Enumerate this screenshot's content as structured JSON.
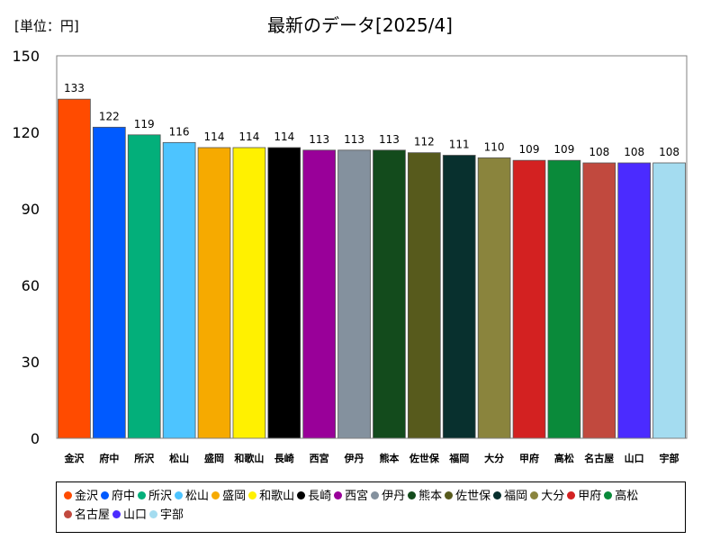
{
  "unit_label": "[単位：円]",
  "chart_data": {
    "type": "bar",
    "title": "最新のデータ[2025/4]",
    "categories": [
      "金沢",
      "府中",
      "所沢",
      "松山",
      "盛岡",
      "和歌山",
      "長崎",
      "西宮",
      "伊丹",
      "熊本",
      "佐世保",
      "福岡",
      "大分",
      "甲府",
      "高松",
      "名古屋",
      "山口",
      "宇部"
    ],
    "values": [
      133,
      122,
      119,
      116,
      114,
      114,
      114,
      113,
      113,
      113,
      112,
      111,
      110,
      109,
      109,
      108,
      108,
      108
    ],
    "colors": [
      "#FF4B00",
      "#005AFF",
      "#03AF7A",
      "#4DC4FF",
      "#F6AA00",
      "#FFF100",
      "#000000",
      "#990099",
      "#84919E",
      "#134B1C",
      "#575A1C",
      "#08302E",
      "#8A843D",
      "#D32121",
      "#0A8A3A",
      "#C1493E",
      "#4B2BFF",
      "#A4DCF0"
    ],
    "ylim": [
      0,
      150
    ],
    "yticks": [
      0,
      30,
      60,
      90,
      120,
      150
    ],
    "grid": false,
    "legend_position": "bottom"
  }
}
